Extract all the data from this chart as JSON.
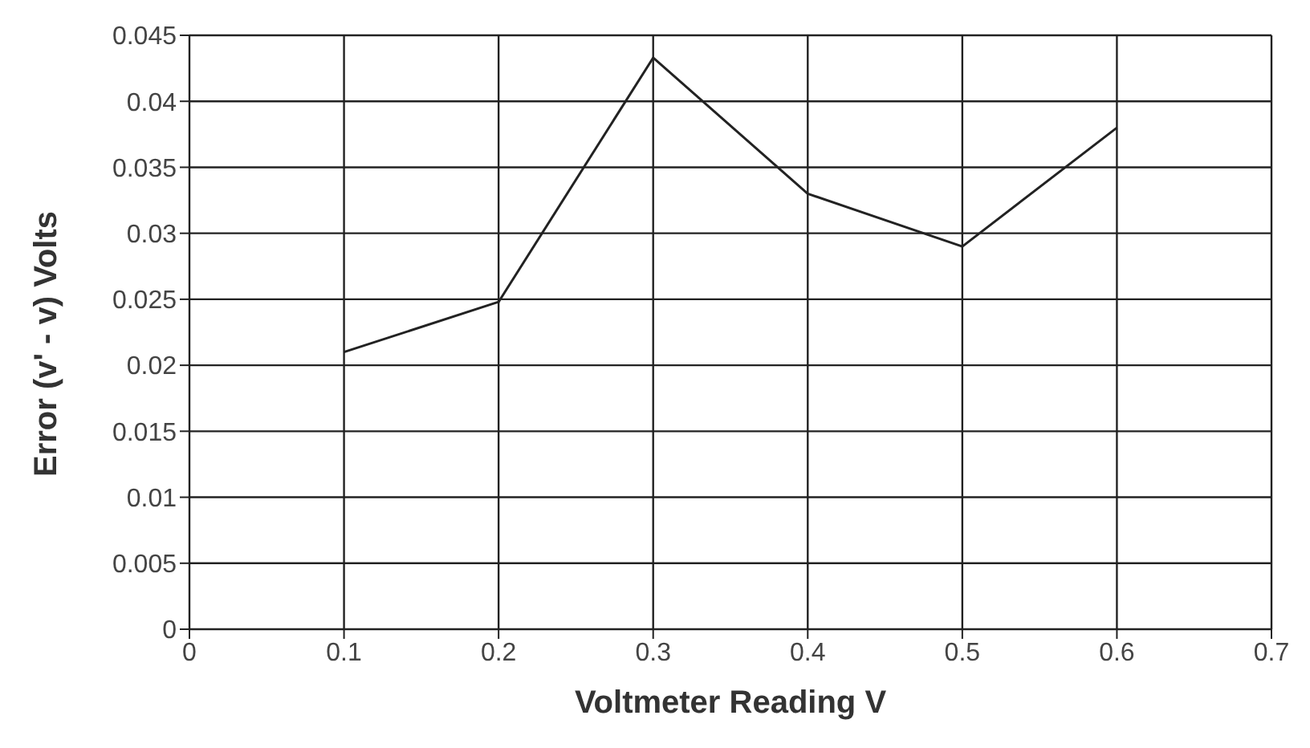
{
  "chart_data": {
    "type": "line",
    "xlabel": "Voltmeter Reading V",
    "ylabel": "Error (v' - v) Volts",
    "x": [
      0.1,
      0.2,
      0.3,
      0.4,
      0.5,
      0.6
    ],
    "series": [
      {
        "color": "#222222",
        "values": [
          0.021,
          0.0248,
          0.0433,
          0.033,
          0.029,
          0.038
        ]
      }
    ],
    "xlim": [
      0,
      0.7
    ],
    "xticks": [
      0,
      0.1,
      0.2,
      0.3,
      0.4,
      0.5,
      0.6,
      0.7
    ],
    "ylim": [
      0,
      0.045
    ],
    "yticks": [
      0,
      0.005,
      0.01,
      0.015,
      0.02,
      0.025,
      0.03,
      0.035,
      0.04,
      0.045
    ],
    "grid": true,
    "legend": false,
    "marker": "none",
    "line_style": "solid"
  }
}
